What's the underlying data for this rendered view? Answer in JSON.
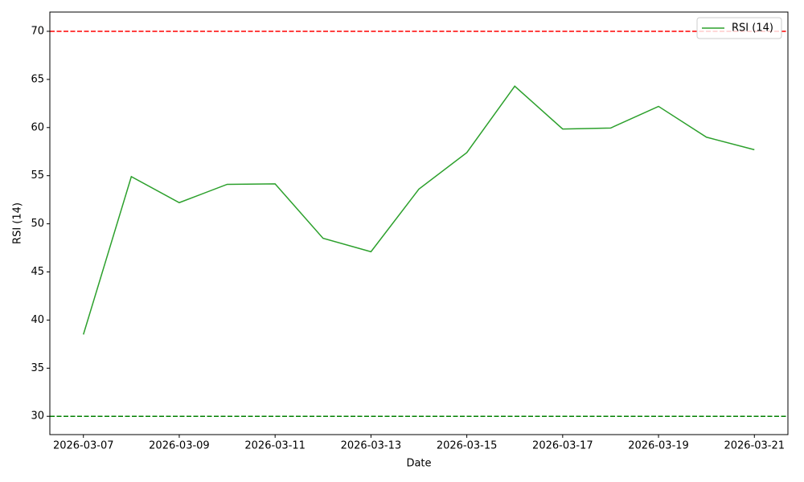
{
  "chart_data": {
    "type": "line",
    "xlabel": "Date",
    "ylabel": "RSI (14)",
    "x": [
      "2026-03-07",
      "2026-03-08",
      "2026-03-09",
      "2026-03-10",
      "2026-03-11",
      "2026-03-12",
      "2026-03-13",
      "2026-03-14",
      "2026-03-15",
      "2026-03-16",
      "2026-03-17",
      "2026-03-18",
      "2026-03-19",
      "2026-03-20",
      "2026-03-21"
    ],
    "series": [
      {
        "name": "RSI (14)",
        "color": "#2ca02c",
        "values": [
          38.5,
          54.9,
          52.2,
          54.1,
          54.15,
          48.5,
          47.1,
          53.6,
          57.4,
          64.3,
          59.85,
          59.95,
          62.2,
          59.0,
          57.7
        ]
      }
    ],
    "hlines": [
      {
        "value": 70,
        "color": "#ff0000"
      },
      {
        "value": 30,
        "color": "#008000"
      }
    ],
    "ylim": [
      28.1,
      72.0
    ],
    "yticks": [
      30,
      35,
      40,
      45,
      50,
      55,
      60,
      65,
      70
    ],
    "xticks": [
      "2026-03-07",
      "2026-03-09",
      "2026-03-11",
      "2026-03-13",
      "2026-03-15",
      "2026-03-17",
      "2026-03-19",
      "2026-03-21"
    ],
    "legend": "upper right"
  }
}
